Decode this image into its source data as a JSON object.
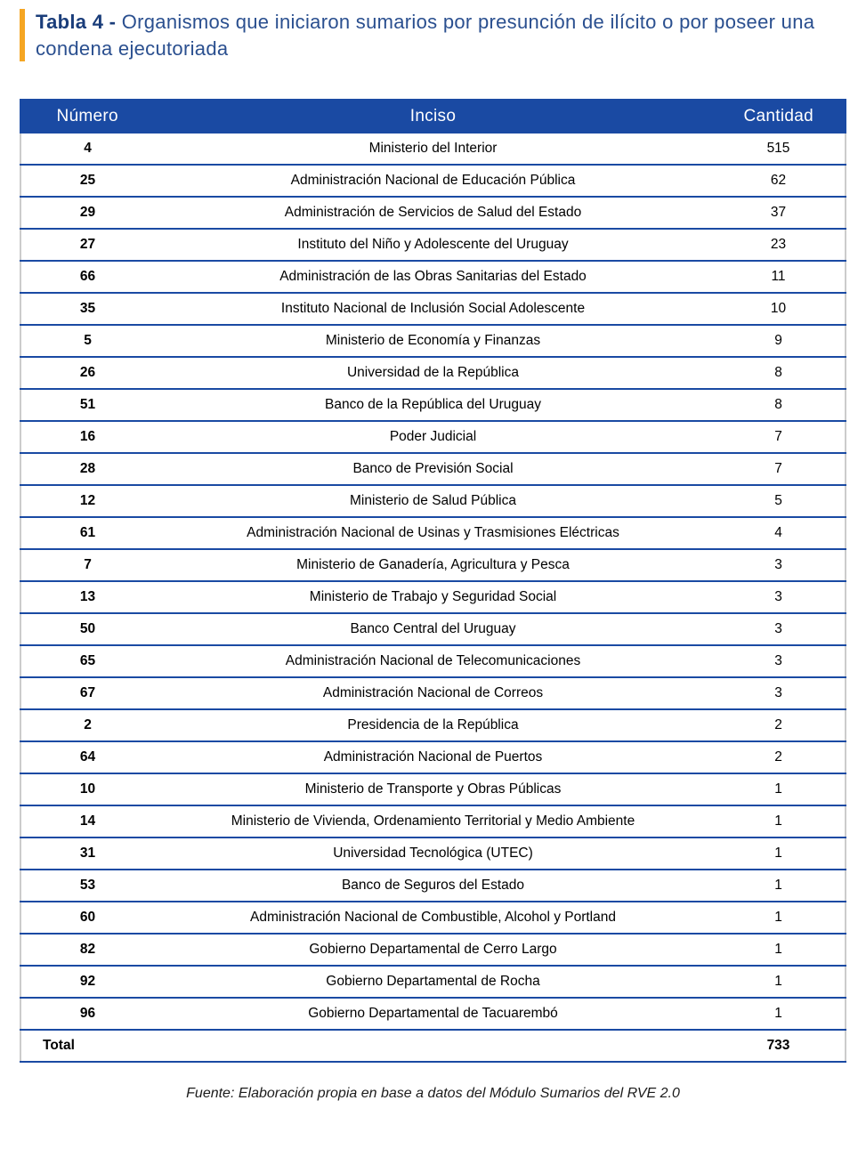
{
  "colors": {
    "header_bg": "#1a4aa3",
    "header_text": "#ffffff",
    "row_border": "#1a4aa3",
    "outer_border": "#cccccc",
    "title_accent": "#f5a623",
    "title_color": "#2a4f8f",
    "body_text": "#000000"
  },
  "typography": {
    "title_fontsize": 22,
    "header_fontsize": 19,
    "body_fontsize": 15.5,
    "footnote_fontsize": 16
  },
  "title": {
    "prefix": "Tabla 4 - ",
    "rest": "Organismos que iniciaron sumarios por presunción de ilícito o por poseer una condena ejecutoriada"
  },
  "table": {
    "type": "table",
    "columns": [
      "Número",
      "Inciso",
      "Cantidad"
    ],
    "column_align": [
      "center",
      "center",
      "center"
    ],
    "rows": [
      {
        "num": "4",
        "inciso": "Ministerio del Interior",
        "cant": "515"
      },
      {
        "num": "25",
        "inciso": "Administración Nacional de Educación Pública",
        "cant": "62"
      },
      {
        "num": "29",
        "inciso": "Administración de Servicios de Salud del Estado",
        "cant": "37"
      },
      {
        "num": "27",
        "inciso": "Instituto del Niño y Adolescente del Uruguay",
        "cant": "23"
      },
      {
        "num": "66",
        "inciso": "Administración de las Obras Sanitarias del Estado",
        "cant": "11"
      },
      {
        "num": "35",
        "inciso": "Instituto Nacional de Inclusión Social Adolescente",
        "cant": "10"
      },
      {
        "num": "5",
        "inciso": "Ministerio de Economía y Finanzas",
        "cant": "9"
      },
      {
        "num": "26",
        "inciso": "Universidad de la República",
        "cant": "8"
      },
      {
        "num": "51",
        "inciso": "Banco de la República del Uruguay",
        "cant": "8"
      },
      {
        "num": "16",
        "inciso": "Poder Judicial",
        "cant": "7"
      },
      {
        "num": "28",
        "inciso": "Banco de Previsión Social",
        "cant": "7"
      },
      {
        "num": "12",
        "inciso": "Ministerio de Salud Pública",
        "cant": "5"
      },
      {
        "num": "61",
        "inciso": "Administración Nacional de Usinas y Trasmisiones Eléctricas",
        "cant": "4"
      },
      {
        "num": "7",
        "inciso": "Ministerio de Ganadería, Agricultura y Pesca",
        "cant": "3"
      },
      {
        "num": "13",
        "inciso": "Ministerio de Trabajo y Seguridad Social",
        "cant": "3"
      },
      {
        "num": "50",
        "inciso": "Banco Central del Uruguay",
        "cant": "3"
      },
      {
        "num": "65",
        "inciso": "Administración Nacional de Telecomunicaciones",
        "cant": "3"
      },
      {
        "num": "67",
        "inciso": "Administración Nacional de Correos",
        "cant": "3"
      },
      {
        "num": "2",
        "inciso": "Presidencia de la República",
        "cant": "2"
      },
      {
        "num": "64",
        "inciso": "Administración Nacional de Puertos",
        "cant": "2"
      },
      {
        "num": "10",
        "inciso": "Ministerio de Transporte y Obras Públicas",
        "cant": "1"
      },
      {
        "num": "14",
        "inciso": "Ministerio de Vivienda, Ordenamiento Territorial y Medio Ambiente",
        "cant": "1"
      },
      {
        "num": "31",
        "inciso": "Universidad Tecnológica (UTEC)",
        "cant": "1"
      },
      {
        "num": "53",
        "inciso": "Banco de Seguros del Estado",
        "cant": "1"
      },
      {
        "num": "60",
        "inciso": "Administración Nacional de Combustible, Alcohol y Portland",
        "cant": "1"
      },
      {
        "num": "82",
        "inciso": "Gobierno Departamental de Cerro Largo",
        "cant": "1"
      },
      {
        "num": "92",
        "inciso": "Gobierno Departamental de Rocha",
        "cant": "1"
      },
      {
        "num": "96",
        "inciso": "Gobierno Departamental de Tacuarembó",
        "cant": "1"
      }
    ],
    "total": {
      "label": "Total",
      "value": "733"
    }
  },
  "footnote": "Fuente: Elaboración propia en base a datos del Módulo Sumarios del RVE 2.0"
}
